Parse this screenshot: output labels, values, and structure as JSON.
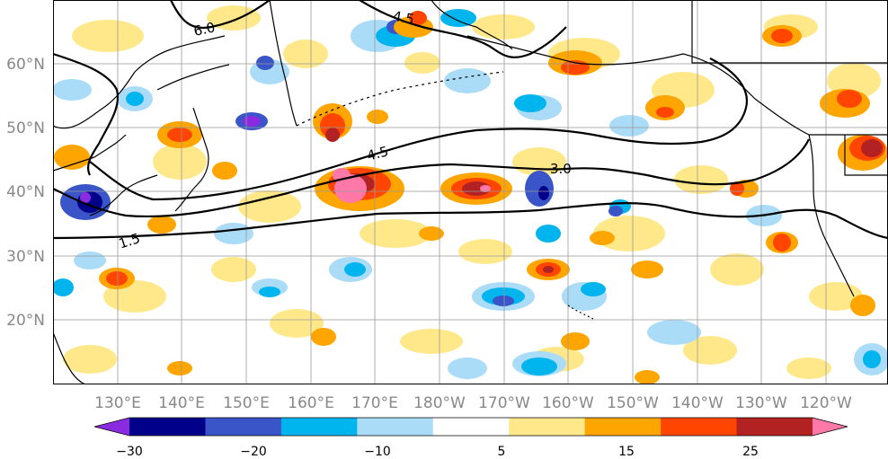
{
  "map": {
    "lat_labels": [
      "60°N",
      "50°N",
      "40°N",
      "30°N",
      "20°N"
    ],
    "lon_labels": [
      "130°E",
      "140°E",
      "150°E",
      "160°E",
      "170°E",
      "180°W",
      "170°W",
      "160°W",
      "150°W",
      "140°W",
      "130°W",
      "120°W"
    ],
    "lat_range": [
      10,
      70
    ],
    "lon_range": [
      122,
      251
    ],
    "contours": [
      {
        "label": "6.0",
        "level": 6.0
      },
      {
        "label": "4.5",
        "level": 4.5
      },
      {
        "label": "4.5",
        "level": 4.5
      },
      {
        "label": "3.0",
        "level": 3.0
      },
      {
        "label": "1.5",
        "level": 1.5
      }
    ]
  },
  "colorbar": {
    "tick_labels": [
      "−30",
      "−20",
      "−10",
      "5",
      "15",
      "25"
    ],
    "colors": [
      "#8a2be2",
      "#00008b",
      "#3a55c8",
      "#00b4ee",
      "#aadcf8",
      "#ffffff",
      "#ffe88a",
      "#ffa500",
      "#ff4500",
      "#b22222",
      "#ff78a8"
    ]
  }
}
